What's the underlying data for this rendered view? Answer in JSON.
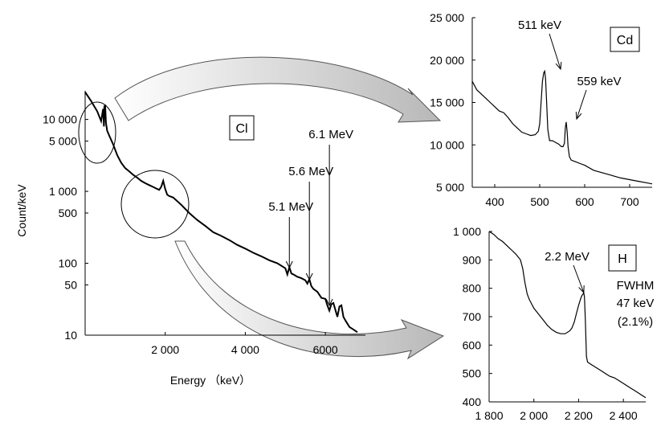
{
  "chart_data": [
    {
      "type": "line",
      "panel": "main",
      "xlabel": "Energy （keV）",
      "ylabel": "Count/keV",
      "y_scale": "log",
      "xlim": [
        0,
        7000
      ],
      "ylim": [
        10,
        25000
      ],
      "xticks": [
        "2 000",
        "4 000",
        "6000"
      ],
      "yticks": [
        "10 000",
        "5 000",
        "1 000",
        "500",
        "100",
        "50",
        "10"
      ],
      "box_label": "Cl",
      "annotations": [
        {
          "text": "5.1 MeV",
          "x": 5100
        },
        {
          "text": "5.6 MeV",
          "x": 5600
        },
        {
          "text": "6.1 MeV",
          "x": 6100
        }
      ],
      "series": [
        {
          "x": [
            0,
            150,
            300,
            400,
            450,
            470,
            480,
            500,
            520,
            550,
            600,
            700,
            800,
            900,
            1000,
            1100,
            1200,
            1300,
            1400,
            1500,
            1600,
            1700,
            1800,
            1850,
            1900,
            1950,
            2000,
            2050,
            2100,
            2200,
            2400,
            2600,
            2800,
            3000,
            3200,
            3400,
            3600,
            3800,
            4000,
            4200,
            4400,
            4600,
            4800,
            5000,
            5050,
            5100,
            5150,
            5200,
            5300,
            5400,
            5500,
            5550,
            5600,
            5650,
            5700,
            5800,
            5900,
            6000,
            6050,
            6100,
            6150,
            6200,
            6300,
            6350,
            6400,
            6450,
            6500,
            6600,
            6700,
            6800
          ],
          "y": [
            24000,
            18000,
            13000,
            9500,
            14000,
            8000,
            15000,
            16000,
            9000,
            7000,
            6000,
            4500,
            3200,
            2500,
            2100,
            1900,
            1700,
            1550,
            1400,
            1300,
            1220,
            1150,
            1080,
            1050,
            1150,
            1400,
            1080,
            900,
            860,
            820,
            650,
            500,
            400,
            330,
            270,
            240,
            210,
            180,
            160,
            140,
            125,
            110,
            100,
            85,
            70,
            88,
            72,
            70,
            65,
            62,
            58,
            52,
            60,
            48,
            44,
            40,
            33,
            32,
            26,
            22,
            27,
            28,
            18,
            25,
            26,
            18,
            16,
            13,
            12,
            11
          ]
        }
      ]
    },
    {
      "type": "line",
      "panel": "Cd",
      "box_label": "Cd",
      "xlim": [
        350,
        750
      ],
      "ylim": [
        5000,
        25000
      ],
      "xticks": [
        "400",
        "500",
        "600",
        "700"
      ],
      "yticks": [
        "25 000",
        "20 000",
        "15 000",
        "10 000",
        "5 000"
      ],
      "annotations": [
        {
          "text": "511 keV",
          "x": 511
        },
        {
          "text": "559 keV",
          "x": 559
        }
      ],
      "series": [
        {
          "x": [
            350,
            360,
            370,
            380,
            390,
            400,
            410,
            420,
            430,
            440,
            450,
            460,
            470,
            480,
            490,
            497,
            500,
            503,
            506,
            509,
            511,
            513,
            515,
            518,
            522,
            528,
            535,
            542,
            548,
            552,
            555,
            557,
            559,
            561,
            563,
            566,
            570,
            580,
            590,
            600,
            620,
            640,
            660,
            680,
            700,
            720,
            740,
            750
          ],
          "y": [
            17500,
            16500,
            16000,
            15500,
            15000,
            14500,
            14000,
            13800,
            13200,
            12500,
            12000,
            11500,
            11300,
            11100,
            11200,
            11600,
            12500,
            15000,
            17500,
            18500,
            18700,
            17800,
            15500,
            11800,
            10500,
            10500,
            10300,
            10100,
            9800,
            9800,
            10200,
            12000,
            12700,
            11500,
            9800,
            8600,
            8200,
            8000,
            7800,
            7600,
            7000,
            6700,
            6400,
            6100,
            5900,
            5700,
            5500,
            5400
          ]
        }
      ]
    },
    {
      "type": "line",
      "panel": "H",
      "box_label": "H",
      "extra_text": [
        "FWHM",
        "47 keV",
        "(2.1%)"
      ],
      "xlim": [
        1800,
        2500
      ],
      "ylim": [
        400,
        1000
      ],
      "xticks": [
        "1 800",
        "2 000",
        "2 200",
        "2 400"
      ],
      "yticks": [
        "1 000",
        "900",
        "800",
        "700",
        "600",
        "500",
        "400"
      ],
      "annotations": [
        {
          "text": "2.2 MeV",
          "x": 2223
        }
      ],
      "series": [
        {
          "x": [
            1800,
            1820,
            1840,
            1860,
            1880,
            1900,
            1920,
            1940,
            1950,
            1960,
            1970,
            1980,
            1990,
            2000,
            2020,
            2040,
            2060,
            2080,
            2100,
            2120,
            2140,
            2160,
            2170,
            2180,
            2190,
            2200,
            2210,
            2215,
            2220,
            2223,
            2226,
            2230,
            2235,
            2240,
            2260,
            2280,
            2300,
            2320,
            2340,
            2360,
            2380,
            2400,
            2420,
            2440,
            2460,
            2480,
            2500
          ],
          "y": [
            1000,
            990,
            975,
            965,
            950,
            935,
            920,
            900,
            870,
            820,
            780,
            760,
            745,
            730,
            710,
            690,
            670,
            655,
            645,
            640,
            640,
            650,
            660,
            680,
            710,
            740,
            765,
            775,
            780,
            785,
            770,
            690,
            560,
            540,
            530,
            520,
            510,
            500,
            490,
            485,
            475,
            465,
            455,
            445,
            435,
            425,
            415
          ]
        }
      ]
    }
  ]
}
